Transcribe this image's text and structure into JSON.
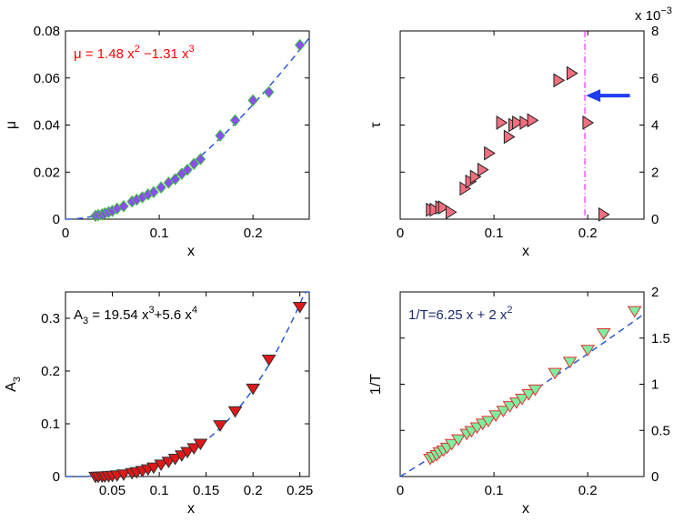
{
  "chart_data": [
    {
      "id": "mu",
      "type": "scatter",
      "xlabel": "x",
      "ylabel": "μ",
      "xlim": [
        0,
        0.26
      ],
      "ylim": [
        0,
        0.08
      ],
      "xticks": [
        0,
        0.1,
        0.2
      ],
      "xtick_labels": [
        "0",
        "0.1",
        "0.2"
      ],
      "yticks": [
        0,
        0.02,
        0.04,
        0.06,
        0.08
      ],
      "ytick_labels": [
        "0",
        "0.02",
        "0.04",
        "0.06",
        "0.08"
      ],
      "y_axis_side": "left",
      "annotation": {
        "parts": [
          {
            "t": "μ = 1.48 x",
            "s": false
          },
          {
            "t": "2",
            "s": true
          },
          {
            "t": " −1.31 x",
            "s": false
          },
          {
            "t": "3",
            "s": true
          }
        ],
        "color": "#ff0000",
        "position": "top-left"
      },
      "fit": {
        "style": "dashed",
        "color": "#2a5bd7",
        "coef": [
          0,
          0,
          1.48,
          -1.31
        ],
        "x_range": [
          0,
          0.26
        ]
      },
      "marker": {
        "shape": "diamond",
        "fill": "#8a4ef0",
        "stroke": "#3cc040"
      },
      "series": {
        "x": [
          0.032,
          0.035,
          0.039,
          0.042,
          0.046,
          0.05,
          0.055,
          0.062,
          0.071,
          0.076,
          0.082,
          0.088,
          0.094,
          0.102,
          0.11,
          0.117,
          0.124,
          0.13,
          0.137,
          0.144,
          0.165,
          0.181,
          0.2,
          0.217,
          0.25
        ],
        "y": [
          0.0014,
          0.0017,
          0.002,
          0.0025,
          0.003,
          0.0035,
          0.0045,
          0.0055,
          0.0075,
          0.0083,
          0.0093,
          0.0105,
          0.0115,
          0.0135,
          0.0155,
          0.017,
          0.0193,
          0.021,
          0.0235,
          0.0255,
          0.0355,
          0.042,
          0.0505,
          0.054,
          0.074
        ]
      }
    },
    {
      "id": "tau",
      "type": "scatter",
      "xlabel": "x",
      "ylabel": "τ",
      "xlim": [
        0,
        0.26
      ],
      "ylim": [
        0,
        0.008
      ],
      "xticks": [
        0,
        0.1,
        0.2
      ],
      "xtick_labels": [
        "0",
        "0.1",
        "0.2"
      ],
      "yticks": [
        0,
        0.002,
        0.004,
        0.006,
        0.008
      ],
      "ytick_labels": [
        "0",
        "2",
        "4",
        "6",
        "8"
      ],
      "y_axis_side": "right",
      "exponent_label": {
        "base": "x 10",
        "exp": "−3"
      },
      "vline": {
        "x": 0.197,
        "color": "#ff00ff",
        "style": "dashdot"
      },
      "arrow": {
        "color": "#1f3cf0",
        "x_from": 0.245,
        "x_to": 0.198,
        "y": 0.00525
      },
      "marker": {
        "shape": "triangle-right",
        "fill": "#f07080",
        "stroke": "#202020"
      },
      "series": {
        "x": [
          0.032,
          0.036,
          0.042,
          0.045,
          0.053,
          0.068,
          0.074,
          0.079,
          0.087,
          0.094,
          0.107,
          0.115,
          0.12,
          0.124,
          0.132,
          0.14,
          0.168,
          0.182,
          0.199,
          0.216
        ],
        "y": [
          0.0004,
          0.0004,
          0.0005,
          0.0005,
          0.0003,
          0.0013,
          0.0016,
          0.0018,
          0.0021,
          0.0028,
          0.0041,
          0.0035,
          0.004,
          0.0041,
          0.0041,
          0.0042,
          0.0059,
          0.0062,
          0.0041,
          0.0002
        ]
      }
    },
    {
      "id": "a3",
      "type": "scatter",
      "xlabel": "x",
      "ylabel": "A",
      "ylabel_sub": "3",
      "xlim": [
        0,
        0.26
      ],
      "ylim": [
        0,
        0.35
      ],
      "xticks": [
        0.05,
        0.1,
        0.15,
        0.2,
        0.25
      ],
      "xtick_labels": [
        "0.05",
        "0.1",
        "0.15",
        "0.2",
        "0.25"
      ],
      "yticks": [
        0,
        0.1,
        0.2,
        0.3
      ],
      "ytick_labels": [
        "0",
        "0.1",
        "0.2",
        "0.3"
      ],
      "y_axis_side": "left",
      "annotation": {
        "parts": [
          {
            "t": "A",
            "s": false
          },
          {
            "t": "3",
            "sub": true
          },
          {
            "t": " = 19.54 x",
            "s": false
          },
          {
            "t": "3",
            "s": true
          },
          {
            "t": "+5.6 x",
            "s": false
          },
          {
            "t": "4",
            "s": true
          }
        ],
        "color": "#000000",
        "position": "top-left"
      },
      "fit": {
        "style": "dashed",
        "color": "#2a5bd7",
        "coef": [
          0,
          0,
          0,
          19.54,
          5.6
        ],
        "x_range": [
          0,
          0.26
        ]
      },
      "marker": {
        "shape": "triangle-down",
        "fill": "#e01818",
        "stroke": "#303030"
      },
      "series": {
        "x": [
          0.032,
          0.035,
          0.039,
          0.042,
          0.046,
          0.05,
          0.055,
          0.062,
          0.071,
          0.076,
          0.082,
          0.088,
          0.094,
          0.102,
          0.11,
          0.117,
          0.124,
          0.13,
          0.137,
          0.144,
          0.165,
          0.181,
          0.2,
          0.217,
          0.25
        ],
        "y": [
          0.0008,
          0.001,
          0.0014,
          0.0017,
          0.0021,
          0.0027,
          0.0035,
          0.0053,
          0.0079,
          0.0095,
          0.012,
          0.015,
          0.0185,
          0.024,
          0.0295,
          0.035,
          0.0415,
          0.048,
          0.055,
          0.0635,
          0.0985,
          0.125,
          0.168,
          0.223,
          0.323
        ]
      }
    },
    {
      "id": "invT",
      "type": "scatter",
      "xlabel": "x",
      "ylabel": "1/T",
      "xlim": [
        0,
        0.26
      ],
      "ylim": [
        0,
        2
      ],
      "xticks": [
        0,
        0.1,
        0.2
      ],
      "xtick_labels": [
        "0",
        "0.1",
        "0.2"
      ],
      "yticks": [
        0,
        0.5,
        1,
        1.5,
        2
      ],
      "ytick_labels": [
        "0",
        "0.5",
        "1",
        "1.5",
        "2"
      ],
      "y_axis_side": "right",
      "annotation": {
        "parts": [
          {
            "t": "1/T=6.25 x + 2 x",
            "s": false
          },
          {
            "t": "2",
            "s": true
          }
        ],
        "color": "#1a2a6c",
        "position": "top-left"
      },
      "fit": {
        "style": "dashed",
        "color": "#2a5bd7",
        "coef": [
          0,
          6.25,
          2
        ],
        "x_range": [
          0,
          0.26
        ]
      },
      "marker": {
        "shape": "triangle-down",
        "fill": "#7cf0a0",
        "stroke": "#e03030"
      },
      "series": {
        "x": [
          0.032,
          0.035,
          0.039,
          0.042,
          0.046,
          0.05,
          0.055,
          0.062,
          0.071,
          0.076,
          0.082,
          0.088,
          0.094,
          0.102,
          0.11,
          0.117,
          0.124,
          0.13,
          0.137,
          0.144,
          0.165,
          0.181,
          0.2,
          0.217,
          0.25
        ],
        "y": [
          0.2,
          0.22,
          0.24,
          0.27,
          0.29,
          0.32,
          0.36,
          0.41,
          0.47,
          0.5,
          0.54,
          0.58,
          0.61,
          0.67,
          0.72,
          0.77,
          0.81,
          0.85,
          0.9,
          0.95,
          1.13,
          1.25,
          1.38,
          1.56,
          1.8
        ]
      }
    }
  ]
}
